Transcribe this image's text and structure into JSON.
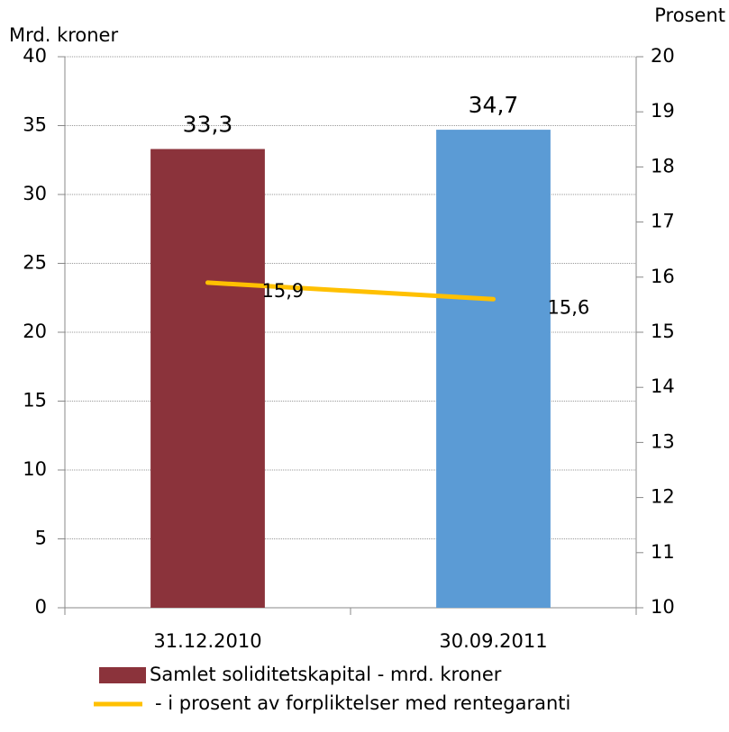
{
  "chart_data": {
    "type": "bar",
    "y_label": "Mrd. kroner",
    "y2_label": "Prosent",
    "categories": [
      "31.12.2010",
      "30.09.2011"
    ],
    "series": [
      {
        "name": "Samlet soliditetskapital - mrd. kroner",
        "type": "bar",
        "color": "#8b333b",
        "colors": [
          "#8b333b",
          "#5b9bd5"
        ],
        "values": [
          33.3,
          34.7
        ],
        "value_labels": [
          "33,3",
          "34,7"
        ]
      },
      {
        "name": "-  i prosent av forpliktelser med rentegaranti",
        "type": "line",
        "axis": "y2",
        "color": "#ffc000",
        "values": [
          15.9,
          15.6
        ],
        "value_labels": [
          "15,9",
          "15,6"
        ]
      }
    ],
    "ylim": [
      0,
      40
    ],
    "yticks": [
      0,
      5,
      10,
      15,
      20,
      25,
      30,
      35,
      40
    ],
    "y2lim": [
      10,
      20
    ],
    "y2ticks": [
      10,
      11,
      12,
      13,
      14,
      15,
      16,
      17,
      18,
      19,
      20
    ],
    "grid": true
  }
}
